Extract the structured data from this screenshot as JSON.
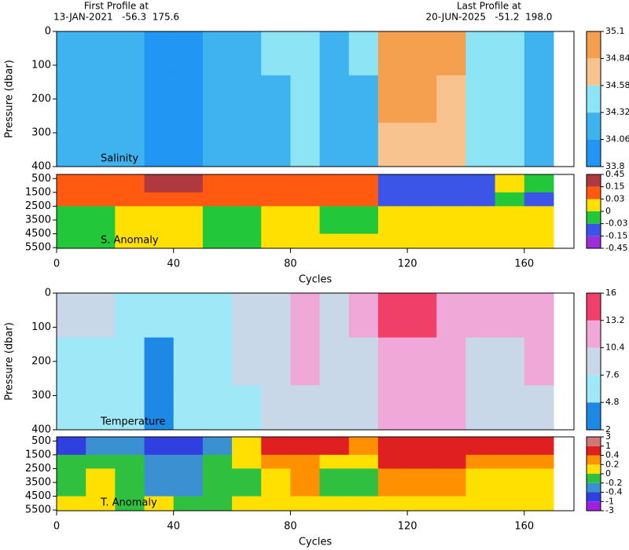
{
  "header": {
    "first_label": "First Profile at",
    "first_info": "13-JAN-2021   -56.3  175.6",
    "last_label": "Last Profile at",
    "last_info": "20-JUN-2025   -51.2  198.0"
  },
  "chart_data": [
    {
      "type": "heatmap",
      "annotation": "Salinity",
      "ylabel": "Pressure (dbar)",
      "y_inverted": true,
      "xlim": [
        0,
        177
      ],
      "ylim": [
        0,
        400
      ],
      "yticks": [
        0,
        100,
        200,
        300,
        400
      ],
      "x": [
        0,
        10,
        20,
        30,
        40,
        50,
        60,
        70,
        80,
        90,
        100,
        110,
        120,
        130,
        140,
        150,
        160,
        170
      ],
      "y": [
        0,
        130,
        270,
        400
      ],
      "z": [
        [
          34.2,
          34.25,
          34.22,
          34.0,
          34.02,
          34.25,
          34.3,
          34.35,
          34.4,
          34.3,
          34.35,
          34.9,
          34.95,
          34.9,
          34.4,
          34.45,
          34.3
        ],
        [
          34.2,
          34.2,
          34.22,
          34.02,
          34.05,
          34.2,
          34.25,
          34.3,
          34.38,
          34.28,
          34.3,
          34.85,
          34.9,
          34.7,
          34.4,
          34.4,
          34.3
        ],
        [
          34.2,
          34.15,
          34.2,
          34.0,
          34.05,
          34.2,
          34.2,
          34.28,
          34.32,
          34.25,
          34.3,
          34.7,
          34.75,
          34.6,
          34.35,
          34.35,
          34.25
        ]
      ],
      "colorbar_ticks": [
        33.8,
        34.06,
        34.32,
        34.58,
        34.84,
        35.1
      ],
      "colors": [
        "#2196f3",
        "#3fb3f0",
        "#8de4f5",
        "#f8c38e",
        "#f5a04e"
      ]
    },
    {
      "type": "heatmap",
      "annotation": "S. Anomaly",
      "xlabel": "Cycles",
      "y_inverted": true,
      "xlim": [
        0,
        177
      ],
      "ylim": [
        200,
        5550
      ],
      "yticks": [
        500,
        1500,
        2500,
        3500,
        4500,
        5500
      ],
      "xticks": [
        0,
        40,
        80,
        120,
        160
      ],
      "x": [
        0,
        10,
        20,
        30,
        40,
        50,
        60,
        70,
        80,
        90,
        100,
        110,
        120,
        130,
        140,
        150,
        160,
        170
      ],
      "y": [
        200,
        1500,
        2500,
        4500,
        5550
      ],
      "z": [
        [
          0.1,
          0.12,
          0.1,
          0.2,
          0.2,
          0.1,
          0.05,
          0.1,
          0.08,
          0.1,
          0.1,
          -0.05,
          -0.06,
          -0.05,
          -0.04,
          0.02,
          -0.02
        ],
        [
          0.05,
          0.06,
          0.05,
          0.05,
          0.06,
          0.05,
          0.04,
          0.05,
          0.05,
          0.04,
          0.05,
          -0.04,
          -0.05,
          -0.05,
          -0.04,
          -0.03,
          -0.04
        ],
        [
          -0.01,
          -0.01,
          0.01,
          0.01,
          0.02,
          -0.01,
          -0.02,
          0.01,
          0.02,
          -0.01,
          -0.01,
          0.01,
          0.02,
          0.01,
          0.02,
          0.01,
          0.02
        ],
        [
          -0.02,
          -0.01,
          0.01,
          0.02,
          0.01,
          -0.01,
          -0.02,
          0.01,
          0.02,
          0.01,
          0.01,
          0.02,
          0.02,
          0.01,
          0.02,
          0.01,
          0.02
        ]
      ],
      "colorbar_ticks": [
        -0.45,
        -0.15,
        -0.03,
        0,
        0.03,
        0.15,
        0.45
      ],
      "colors": [
        "#9b30d9",
        "#3a55e8",
        "#22c83a",
        "#ffe000",
        "#ff5a10",
        "#b0383f"
      ]
    },
    {
      "type": "heatmap",
      "annotation": "Temperature",
      "ylabel": "Pressure (dbar)",
      "y_inverted": true,
      "xlim": [
        0,
        177
      ],
      "ylim": [
        0,
        400
      ],
      "yticks": [
        0,
        100,
        200,
        300,
        400
      ],
      "x": [
        0,
        10,
        20,
        30,
        40,
        50,
        60,
        70,
        80,
        90,
        100,
        110,
        120,
        130,
        140,
        150,
        160,
        170
      ],
      "y": [
        0,
        130,
        270,
        400
      ],
      "z": [
        [
          8,
          8.5,
          7.5,
          5,
          5.5,
          7,
          8,
          9,
          10.8,
          9.5,
          10.5,
          13.5,
          14,
          13,
          10.8,
          11,
          11.5
        ],
        [
          7,
          7.5,
          7,
          4.5,
          5,
          6.5,
          7.8,
          8.5,
          10.5,
          9,
          10,
          12.5,
          13,
          12,
          9.5,
          10,
          10.5
        ],
        [
          6.5,
          7,
          6.5,
          4.5,
          4.9,
          6,
          7.5,
          8,
          9.5,
          8.5,
          9.5,
          11.5,
          12,
          11,
          9,
          9,
          9.5
        ]
      ],
      "colorbar_ticks": [
        2,
        4.8,
        7.6,
        10.4,
        13.2,
        16
      ],
      "colors": [
        "#1e88e5",
        "#9fe8f7",
        "#c8d8e8",
        "#f0a8d8",
        "#f0406a"
      ]
    },
    {
      "type": "heatmap",
      "annotation": "T. Anomaly",
      "xlabel": "Cycles",
      "y_inverted": true,
      "xlim": [
        0,
        177
      ],
      "ylim": [
        200,
        5550
      ],
      "yticks": [
        500,
        1500,
        2500,
        3500,
        4500,
        5500
      ],
      "xticks": [
        0,
        40,
        80,
        120,
        160
      ],
      "x": [
        0,
        10,
        20,
        30,
        40,
        50,
        60,
        70,
        80,
        90,
        100,
        110,
        120,
        130,
        140,
        150,
        160,
        170
      ],
      "y": [
        200,
        1500,
        2500,
        4500,
        5550
      ],
      "z": [
        [
          -0.5,
          -0.3,
          -0.3,
          -0.5,
          -0.5,
          -0.3,
          0.1,
          0.6,
          0.7,
          0.5,
          0.3,
          0.8,
          0.9,
          0.8,
          0.5,
          0.6,
          0.5
        ],
        [
          -0.1,
          -0.1,
          -0.1,
          -0.3,
          -0.3,
          -0.1,
          0.05,
          0.3,
          0.3,
          0.1,
          0.1,
          0.5,
          0.6,
          0.5,
          0.3,
          0.3,
          0.3
        ],
        [
          -0.1,
          0.1,
          -0.1,
          -0.3,
          -0.25,
          -0.1,
          -0.1,
          0.1,
          0.25,
          -0.1,
          -0.1,
          0.3,
          0.3,
          0.3,
          0.15,
          0.1,
          0.1
        ],
        [
          0.1,
          0.05,
          -0.1,
          0.1,
          -0.1,
          -0.1,
          0.1,
          0.1,
          0.1,
          0.1,
          0.15,
          0.1,
          0.1,
          0.1,
          0.1,
          0.15,
          0.15
        ]
      ],
      "colorbar_ticks": [
        -3,
        -1,
        -0.4,
        -0.2,
        0,
        0.2,
        0.4,
        1,
        3
      ],
      "colors": [
        "#a020e0",
        "#3040e0",
        "#3a90d0",
        "#30c040",
        "#ffe000",
        "#ff9000",
        "#e02020",
        "#d07878"
      ]
    }
  ]
}
